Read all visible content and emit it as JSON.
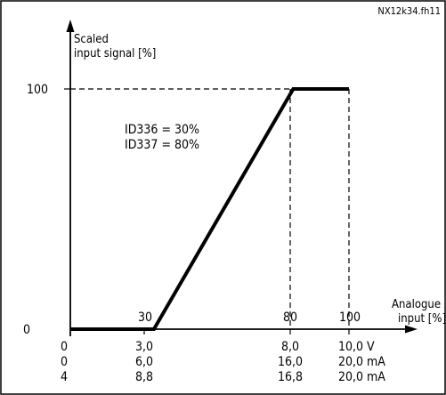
{
  "figure_id": "NX12k34.fh11",
  "y_axis_label_line1": "Scaled",
  "y_axis_label_line2": "input signal [%]",
  "x_axis_label_line1": "Analogue",
  "x_axis_label_line2": "input [%]",
  "parameters": {
    "line1": "ID336 = 30%",
    "line2": "ID337 = 80%"
  },
  "scale_rows": [
    [
      "0",
      "3,0",
      "8,0",
      "10,0 V"
    ],
    [
      "0",
      "6,0",
      "16,0",
      "20,0 mA"
    ],
    [
      "4",
      "8,8",
      "16,8",
      "20,0 mA"
    ]
  ],
  "chart_data": {
    "type": "line",
    "x": [
      0,
      30,
      80,
      100
    ],
    "y": [
      0,
      0,
      100,
      100
    ],
    "x_ticks": [
      "30",
      "80",
      "100"
    ],
    "y_ticks": [
      "0",
      "100"
    ],
    "xlim": [
      0,
      100
    ],
    "ylim": [
      0,
      100
    ],
    "xlabel": "Analogue input [%]",
    "ylabel": "Scaled input signal [%]"
  }
}
